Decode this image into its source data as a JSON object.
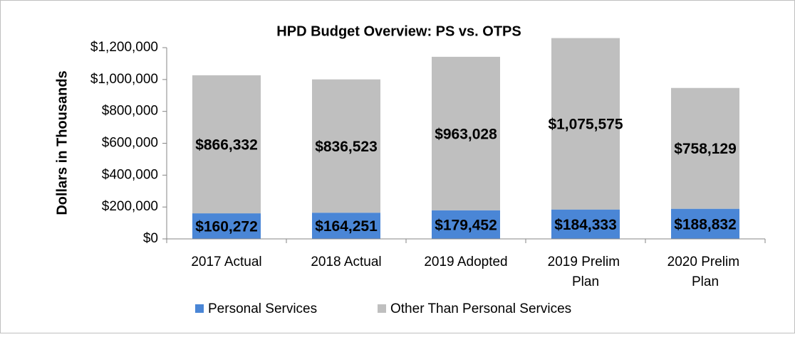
{
  "chart_data": {
    "type": "stacked_bar",
    "title": "HPD Budget Overview: PS vs. OTPS",
    "y_label": "Dollars in Thousands",
    "categories": [
      "2017 Actual",
      "2018 Actual",
      "2019 Adopted",
      "2019 Prelim Plan",
      "2020 Prelim Plan"
    ],
    "series": [
      {
        "name": "Personal Services",
        "color": "#4a86d6",
        "values": [
          160272,
          164251,
          179452,
          184333,
          188832
        ],
        "value_labels": [
          "$160,272",
          "$164,251",
          "$179,452",
          "$184,333",
          "$188,832"
        ]
      },
      {
        "name": "Other Than Personal Services",
        "color": "#bfbfbf",
        "values": [
          866332,
          836523,
          963028,
          1075575,
          758129
        ],
        "value_labels": [
          "$866,332",
          "$836,523",
          "$963,028",
          "$1,075,575",
          "$758,129"
        ]
      }
    ],
    "ylim": [
      0,
      1200000
    ],
    "yticks": [
      {
        "value": 0,
        "label": "$0"
      },
      {
        "value": 200000,
        "label": "$200,000"
      },
      {
        "value": 400000,
        "label": "$400,000"
      },
      {
        "value": 600000,
        "label": "$600,000"
      },
      {
        "value": 800000,
        "label": "$800,000"
      },
      {
        "value": 1000000,
        "label": "$1,000,000"
      },
      {
        "value": 1200000,
        "label": "$1,200,000"
      }
    ],
    "grid": false,
    "legend": "bottom"
  }
}
